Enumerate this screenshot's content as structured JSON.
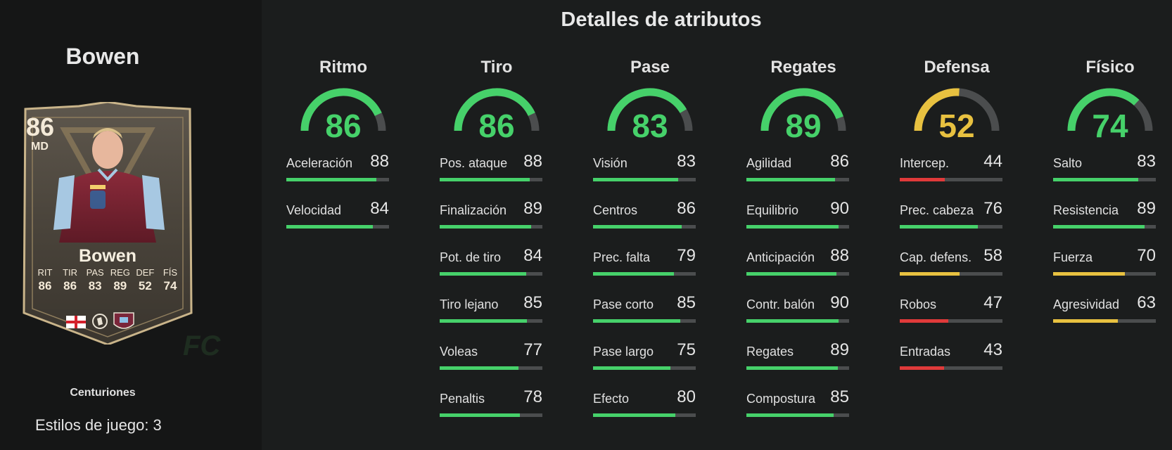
{
  "page_title": "Detalles de atributos",
  "player": {
    "name": "Bowen",
    "card": {
      "rating": "86",
      "position": "MD",
      "name": "Bowen",
      "stats": [
        {
          "label": "RIT",
          "value": "86"
        },
        {
          "label": "TIR",
          "value": "86"
        },
        {
          "label": "PAS",
          "value": "83"
        },
        {
          "label": "REG",
          "value": "89"
        },
        {
          "label": "DEF",
          "value": "52"
        },
        {
          "label": "FÍS",
          "value": "74"
        }
      ]
    },
    "card_type": "Centuriones",
    "playstyles": "Estilos de juego: 3"
  },
  "watermark": "FC",
  "colors": {
    "green": "#46d16a",
    "yellow": "#e8c140",
    "red": "#e03a3a",
    "track": "#4b4d4e",
    "background": "#1b1d1d"
  },
  "categories": [
    {
      "name": "Ritmo",
      "value": 86,
      "color": "green",
      "attrs": [
        {
          "label": "Aceleración",
          "value": 88,
          "color": "green"
        },
        {
          "label": "Velocidad",
          "value": 84,
          "color": "green"
        }
      ]
    },
    {
      "name": "Tiro",
      "value": 86,
      "color": "green",
      "attrs": [
        {
          "label": "Pos. ataque",
          "value": 88,
          "color": "green"
        },
        {
          "label": "Finalización",
          "value": 89,
          "color": "green"
        },
        {
          "label": "Pot. de tiro",
          "value": 84,
          "color": "green"
        },
        {
          "label": "Tiro lejano",
          "value": 85,
          "color": "green"
        },
        {
          "label": "Voleas",
          "value": 77,
          "color": "green"
        },
        {
          "label": "Penaltis",
          "value": 78,
          "color": "green"
        }
      ]
    },
    {
      "name": "Pase",
      "value": 83,
      "color": "green",
      "attrs": [
        {
          "label": "Visión",
          "value": 83,
          "color": "green"
        },
        {
          "label": "Centros",
          "value": 86,
          "color": "green"
        },
        {
          "label": "Prec. falta",
          "value": 79,
          "color": "green"
        },
        {
          "label": "Pase corto",
          "value": 85,
          "color": "green"
        },
        {
          "label": "Pase largo",
          "value": 75,
          "color": "green"
        },
        {
          "label": "Efecto",
          "value": 80,
          "color": "green"
        }
      ]
    },
    {
      "name": "Regates",
      "value": 89,
      "color": "green",
      "attrs": [
        {
          "label": "Agilidad",
          "value": 86,
          "color": "green"
        },
        {
          "label": "Equilibrio",
          "value": 90,
          "color": "green"
        },
        {
          "label": "Anticipación",
          "value": 88,
          "color": "green"
        },
        {
          "label": "Contr. balón",
          "value": 90,
          "color": "green"
        },
        {
          "label": "Regates",
          "value": 89,
          "color": "green"
        },
        {
          "label": "Compostura",
          "value": 85,
          "color": "green"
        }
      ]
    },
    {
      "name": "Defensa",
      "value": 52,
      "color": "yellow",
      "attrs": [
        {
          "label": "Intercep.",
          "value": 44,
          "color": "red"
        },
        {
          "label": "Prec. cabeza",
          "value": 76,
          "color": "green"
        },
        {
          "label": "Cap. defens.",
          "value": 58,
          "color": "yellow"
        },
        {
          "label": "Robos",
          "value": 47,
          "color": "red"
        },
        {
          "label": "Entradas",
          "value": 43,
          "color": "red"
        }
      ]
    },
    {
      "name": "Físico",
      "value": 74,
      "color": "green",
      "attrs": [
        {
          "label": "Salto",
          "value": 83,
          "color": "green"
        },
        {
          "label": "Resistencia",
          "value": 89,
          "color": "green"
        },
        {
          "label": "Fuerza",
          "value": 70,
          "color": "yellow"
        },
        {
          "label": "Agresividad",
          "value": 63,
          "color": "yellow"
        }
      ]
    }
  ]
}
